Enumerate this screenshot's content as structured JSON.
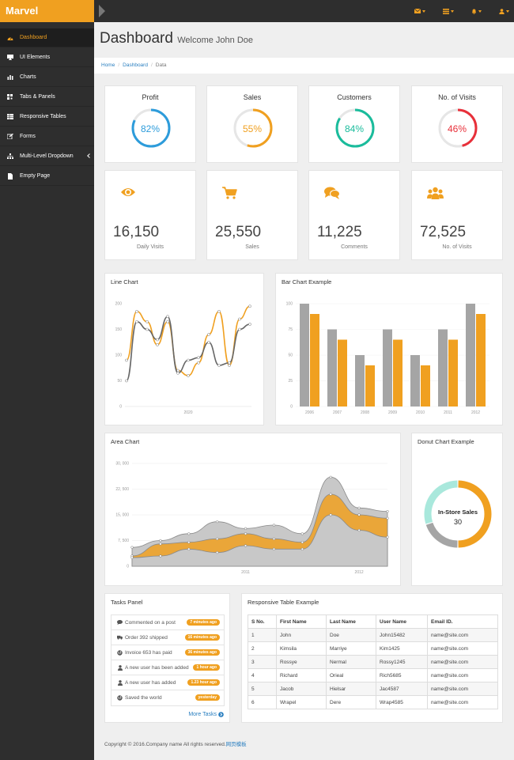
{
  "brand": "Marvel",
  "sidebar": {
    "items": [
      {
        "label": "Dashboard",
        "icon": "dashboard-icon"
      },
      {
        "label": "UI Elements",
        "icon": "desktop-icon"
      },
      {
        "label": "Charts",
        "icon": "bar-chart-icon"
      },
      {
        "label": "Tabs & Panels",
        "icon": "qrcode-icon"
      },
      {
        "label": "Responsive Tables",
        "icon": "table-icon"
      },
      {
        "label": "Forms",
        "icon": "edit-icon"
      },
      {
        "label": "Multi-Level Dropdown",
        "icon": "sitemap-icon"
      },
      {
        "label": "Empty Page",
        "icon": "file-icon"
      }
    ]
  },
  "header": {
    "title": "Dashboard",
    "subtitle": "Welcome John Doe"
  },
  "breadcrumb": [
    "Home",
    "Dashboard",
    "Data"
  ],
  "accent": "#f0a020",
  "stats": [
    {
      "title": "Profit",
      "value": 82,
      "label": "82%",
      "color": "#2d9cdb"
    },
    {
      "title": "Sales",
      "value": 55,
      "label": "55%",
      "color": "#f0a020"
    },
    {
      "title": "Customers",
      "value": 84,
      "label": "84%",
      "color": "#1abc9c"
    },
    {
      "title": "No. of Visits",
      "value": 46,
      "label": "46%",
      "color": "#e8303a"
    }
  ],
  "counters": [
    {
      "icon": "eye-icon",
      "value": "16,150",
      "label": "Daily Visits"
    },
    {
      "icon": "shopping-cart-icon",
      "value": "25,550",
      "label": "Sales"
    },
    {
      "icon": "comments-icon",
      "value": "11,225",
      "label": "Comments"
    },
    {
      "icon": "users-icon",
      "value": "72,525",
      "label": "No. of Visits"
    }
  ],
  "line_chart": {
    "title": "Line Chart",
    "chart_data": {
      "type": "line",
      "x_label_printed": "2020",
      "yticks": [
        0,
        50,
        100,
        150,
        200
      ],
      "ylim": [
        0,
        200
      ],
      "series": [
        {
          "values": [
            90,
            185,
            165,
            120,
            165,
            70,
            60,
            85,
            140,
            185,
            80,
            170,
            195
          ],
          "color": "#f0a020"
        },
        {
          "values": [
            50,
            165,
            150,
            130,
            175,
            65,
            90,
            95,
            125,
            80,
            85,
            150,
            160
          ],
          "color": "#666666"
        }
      ]
    }
  },
  "bar_chart": {
    "title": "Bar Chart Example",
    "chart_data": {
      "type": "bar",
      "categories": [
        "2006",
        "2007",
        "2008",
        "2009",
        "2010",
        "2011",
        "2012"
      ],
      "yticks": [
        0,
        25,
        50,
        75,
        100
      ],
      "ylim": [
        0,
        100
      ],
      "series": [
        {
          "values": [
            100,
            75,
            50,
            75,
            50,
            75,
            100
          ],
          "color": "#a5a5a5"
        },
        {
          "values": [
            90,
            65,
            40,
            65,
            40,
            65,
            90
          ],
          "color": "#f0a020"
        }
      ]
    }
  },
  "area_chart": {
    "title": "Area Chart",
    "chart_data": {
      "type": "area",
      "xtick_labels": [
        "2011",
        "2012"
      ],
      "ytick_labels": [
        "0",
        "7, 500",
        "15, 000",
        "22, 500",
        "30, 000"
      ],
      "yticks": [
        0,
        7500,
        15000,
        22500,
        30000
      ],
      "ylim": [
        0,
        30000
      ],
      "series": [
        {
          "values": [
            5500,
            7500,
            9500,
            13000,
            11000,
            12000,
            9500,
            26000,
            17000,
            16000
          ],
          "color": "#c8c8c8"
        },
        {
          "values": [
            3000,
            6500,
            7000,
            8000,
            9500,
            8000,
            7000,
            21000,
            15000,
            14000
          ],
          "color": "#f0a020"
        },
        {
          "values": [
            2500,
            3000,
            5000,
            4000,
            6000,
            5000,
            5000,
            15000,
            10500,
            8500
          ],
          "color": "#c8c8c8"
        }
      ]
    }
  },
  "donut_chart": {
    "title": "Donut Chart Example",
    "center_label": "In-Store Sales",
    "center_value": "30",
    "chart_data": {
      "type": "pie",
      "slices": [
        {
          "label": "In-Store Sales",
          "value": 30,
          "color": "#a9e8dc"
        },
        {
          "label": "",
          "value": 20,
          "color": "#a5a5a5"
        },
        {
          "label": "",
          "value": 50,
          "color": "#f0a020"
        }
      ]
    }
  },
  "tasks": {
    "title": "Tasks Panel",
    "items": [
      {
        "icon": "comment-icon",
        "text": "Commented on a post",
        "time": "7 minutes ago"
      },
      {
        "icon": "truck-icon",
        "text": "Order 392 shipped",
        "time": "16 minutes ago"
      },
      {
        "icon": "globe-icon",
        "text": "Invoice 653 has paid",
        "time": "36 minutes ago"
      },
      {
        "icon": "user-icon",
        "text": "A new user has been added",
        "time": "1 hour ago"
      },
      {
        "icon": "user-icon",
        "text": "A new user has added",
        "time": "1.23 hour ago"
      },
      {
        "icon": "globe-icon",
        "text": "Saved the world",
        "time": "yesterday"
      }
    ],
    "more": "More Tasks"
  },
  "table": {
    "title": "Responsive Table Example",
    "headers": [
      "S No.",
      "First Name",
      "Last Name",
      "User Name",
      "Email ID."
    ],
    "rows": [
      [
        "1",
        "John",
        "Doe",
        "John15482",
        "name@site.com"
      ],
      [
        "2",
        "Kimsila",
        "Marriye",
        "Kim1425",
        "name@site.com"
      ],
      [
        "3",
        "Rossye",
        "Nermal",
        "Rossy1245",
        "name@site.com"
      ],
      [
        "4",
        "Richard",
        "Orieal",
        "Rich5685",
        "name@site.com"
      ],
      [
        "5",
        "Jacob",
        "Hielsar",
        "Jac4587",
        "name@site.com"
      ],
      [
        "6",
        "Wrapel",
        "Dere",
        "Wrap4585",
        "name@site.com"
      ]
    ]
  },
  "footer": {
    "text": "Copyright © 2016.Company name All rights reserved.",
    "link": "网页模板"
  }
}
